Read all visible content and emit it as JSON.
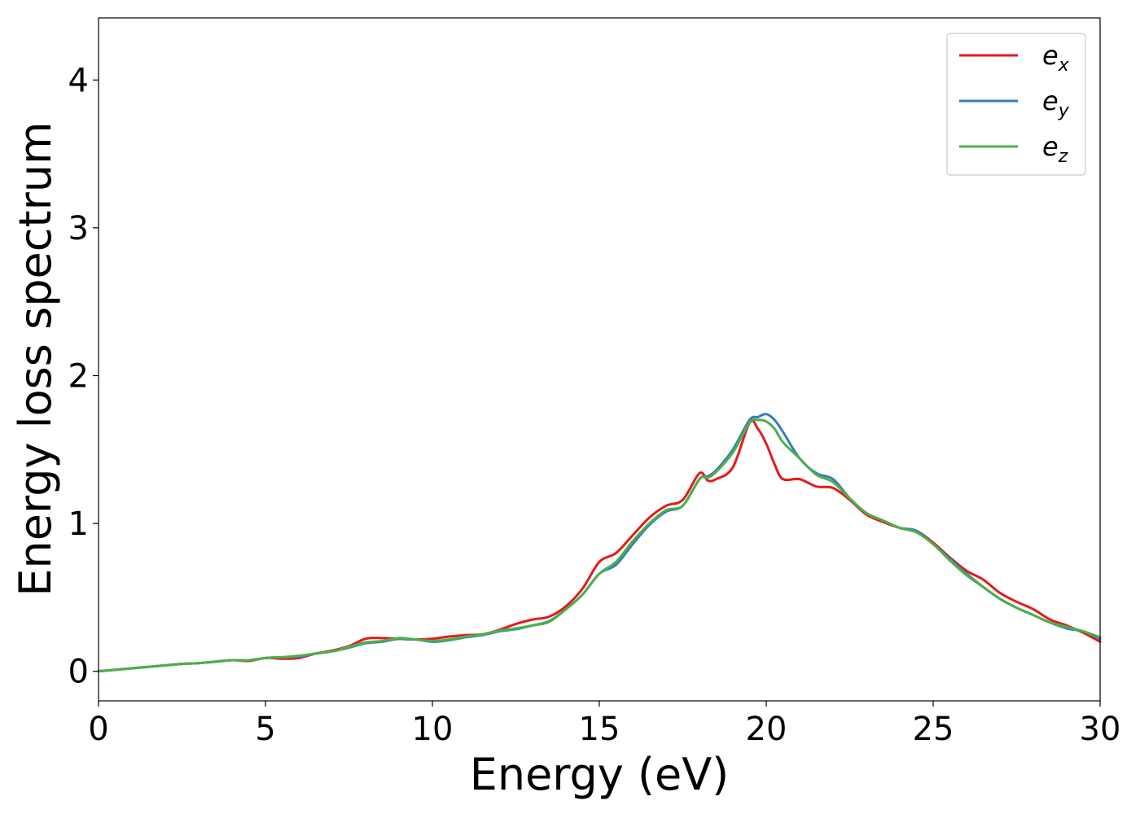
{
  "chart_data": {
    "type": "line",
    "title": "",
    "xlabel": "Energy (eV)",
    "ylabel": "Energy loss spectrum",
    "xlim": [
      0,
      30
    ],
    "ylim": [
      -0.2,
      4.42
    ],
    "xticks": [
      0,
      5,
      10,
      15,
      20,
      25,
      30
    ],
    "xtick_labels": [
      "0",
      "5",
      "10",
      "15",
      "20",
      "25",
      "30"
    ],
    "yticks": [
      0,
      1,
      2,
      3,
      4
    ],
    "ytick_labels": [
      "0",
      "1",
      "2",
      "3",
      "4"
    ],
    "grid": false,
    "legend_position": "top-right",
    "x": [
      0,
      1,
      2,
      2.5,
      3,
      3.5,
      4,
      4.5,
      5,
      5.5,
      6,
      6.5,
      7,
      7.5,
      8,
      8.5,
      9,
      9.5,
      10,
      10.5,
      11,
      11.5,
      12,
      12.5,
      13,
      13.5,
      14,
      14.5,
      15,
      15.5,
      16,
      16.5,
      17,
      17.5,
      18,
      18.25,
      18.5,
      19,
      19.5,
      19.75,
      20,
      20.25,
      20.5,
      21,
      21.5,
      22,
      22.5,
      23,
      23.5,
      24,
      24.5,
      25,
      25.5,
      26,
      26.5,
      27,
      27.5,
      28,
      28.5,
      29,
      29.5,
      30
    ],
    "series": [
      {
        "name": "e",
        "sub": "x",
        "color": "#e41a1c",
        "values": [
          0.0,
          0.02,
          0.04,
          0.05,
          0.055,
          0.065,
          0.075,
          0.07,
          0.09,
          0.085,
          0.09,
          0.12,
          0.14,
          0.17,
          0.22,
          0.225,
          0.22,
          0.215,
          0.22,
          0.235,
          0.245,
          0.25,
          0.28,
          0.32,
          0.35,
          0.37,
          0.44,
          0.56,
          0.74,
          0.8,
          0.92,
          1.04,
          1.12,
          1.16,
          1.34,
          1.29,
          1.3,
          1.38,
          1.68,
          1.64,
          1.54,
          1.4,
          1.3,
          1.3,
          1.25,
          1.24,
          1.16,
          1.06,
          1.01,
          0.97,
          0.95,
          0.87,
          0.77,
          0.68,
          0.62,
          0.53,
          0.47,
          0.42,
          0.35,
          0.31,
          0.26,
          0.2
        ]
      },
      {
        "name": "e",
        "sub": "y",
        "color": "#377eb8",
        "values": [
          0.0,
          0.02,
          0.04,
          0.05,
          0.055,
          0.065,
          0.075,
          0.075,
          0.09,
          0.095,
          0.1,
          0.12,
          0.135,
          0.16,
          0.19,
          0.2,
          0.22,
          0.215,
          0.2,
          0.21,
          0.23,
          0.245,
          0.27,
          0.285,
          0.31,
          0.34,
          0.42,
          0.52,
          0.66,
          0.72,
          0.86,
          0.99,
          1.08,
          1.12,
          1.3,
          1.32,
          1.36,
          1.5,
          1.7,
          1.72,
          1.74,
          1.7,
          1.62,
          1.44,
          1.34,
          1.3,
          1.17,
          1.07,
          1.02,
          0.97,
          0.95,
          0.86,
          0.76,
          0.66,
          0.57,
          0.49,
          0.43,
          0.38,
          0.33,
          0.29,
          0.27,
          0.22
        ]
      },
      {
        "name": "e",
        "sub": "z",
        "color": "#4daf4a",
        "values": [
          0.0,
          0.02,
          0.04,
          0.05,
          0.055,
          0.065,
          0.075,
          0.075,
          0.09,
          0.095,
          0.105,
          0.12,
          0.135,
          0.165,
          0.195,
          0.205,
          0.225,
          0.215,
          0.205,
          0.215,
          0.235,
          0.25,
          0.275,
          0.29,
          0.31,
          0.335,
          0.42,
          0.52,
          0.66,
          0.74,
          0.88,
          1.0,
          1.09,
          1.12,
          1.3,
          1.31,
          1.35,
          1.48,
          1.68,
          1.7,
          1.69,
          1.64,
          1.55,
          1.44,
          1.33,
          1.28,
          1.17,
          1.07,
          1.02,
          0.97,
          0.94,
          0.86,
          0.75,
          0.65,
          0.57,
          0.49,
          0.43,
          0.38,
          0.33,
          0.3,
          0.27,
          0.23
        ]
      }
    ]
  }
}
